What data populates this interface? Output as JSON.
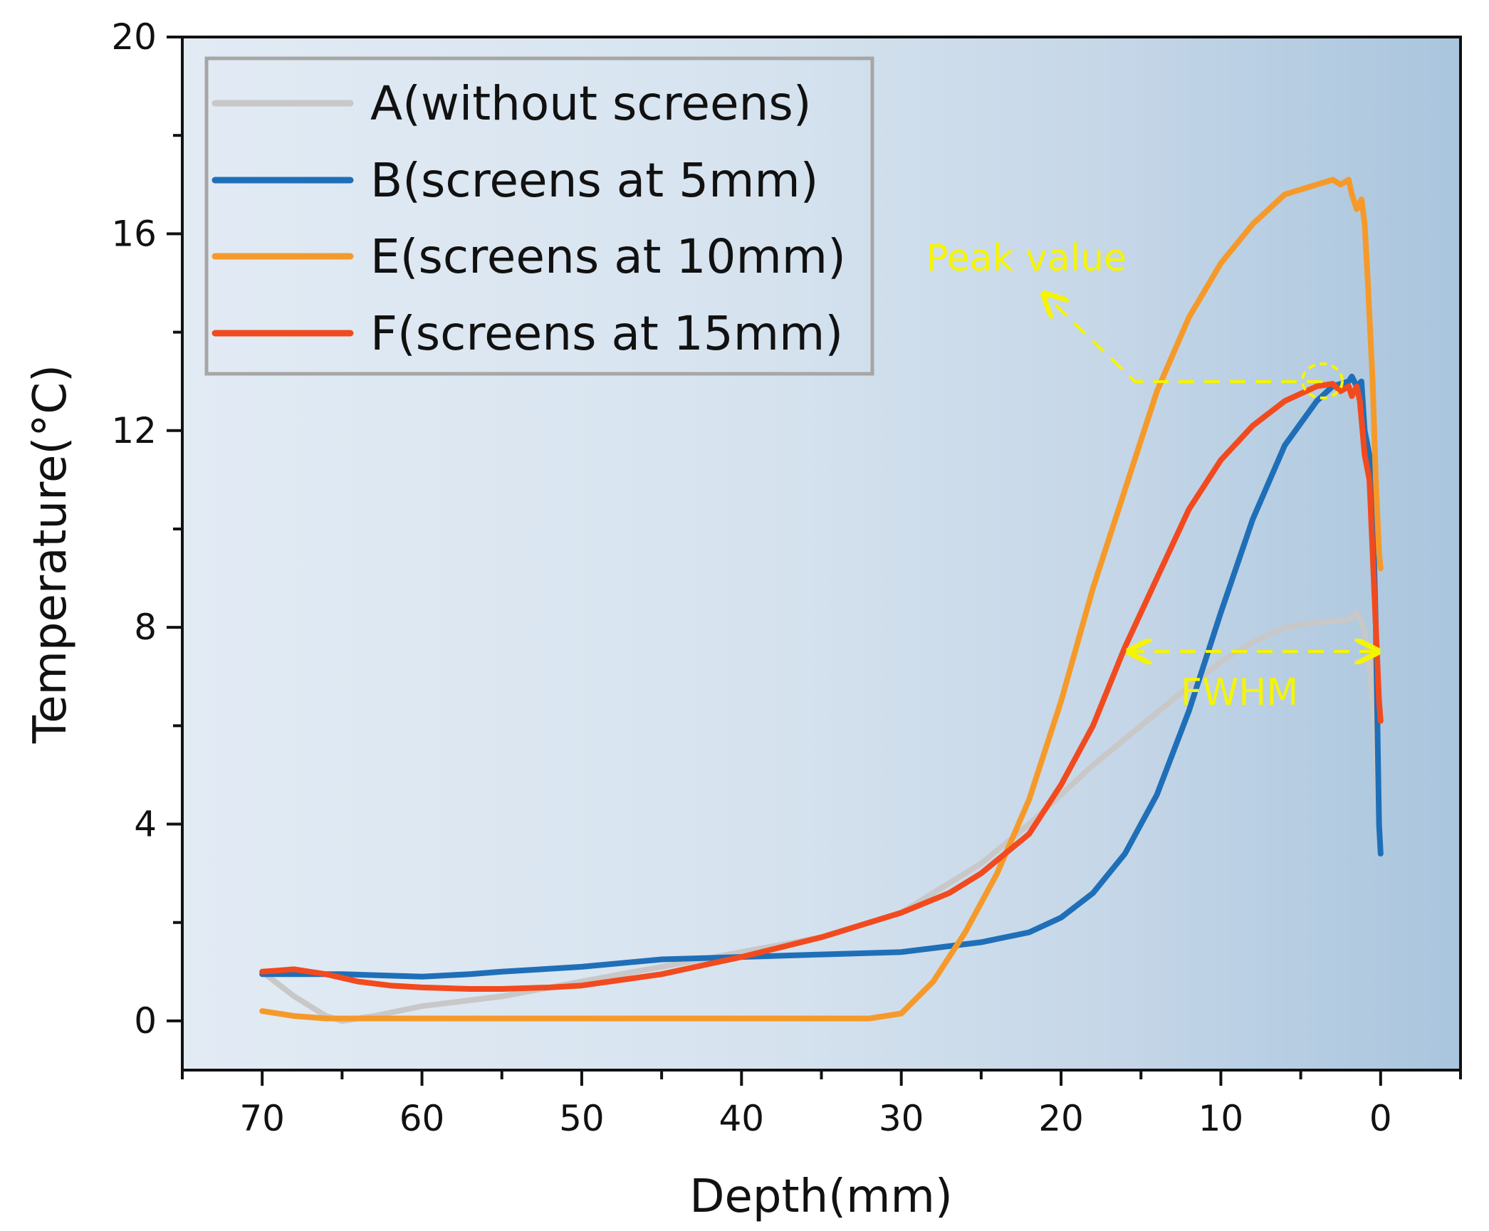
{
  "chart_data": {
    "type": "line",
    "title": "",
    "xlabel": "Depth(mm)",
    "ylabel": "Temperature(°C)",
    "xlim": [
      75,
      -5
    ],
    "ylim": [
      -1,
      20
    ],
    "x_ticks": [
      70,
      60,
      50,
      40,
      30,
      20,
      10,
      0
    ],
    "y_ticks": [
      0,
      4,
      8,
      12,
      16,
      20
    ],
    "grid": false,
    "legend_position": "top-left",
    "series": [
      {
        "name": "A(without screens)",
        "color": "#c8c8c8",
        "points": [
          [
            70,
            1.0
          ],
          [
            68,
            0.5
          ],
          [
            66,
            0.1
          ],
          [
            65,
            0.0
          ],
          [
            63,
            0.1
          ],
          [
            60,
            0.3
          ],
          [
            55,
            0.5
          ],
          [
            50,
            0.8
          ],
          [
            45,
            1.1
          ],
          [
            40,
            1.4
          ],
          [
            35,
            1.7
          ],
          [
            30,
            2.2
          ],
          [
            28,
            2.6
          ],
          [
            25,
            3.2
          ],
          [
            22,
            4.0
          ],
          [
            20,
            4.6
          ],
          [
            18,
            5.2
          ],
          [
            15,
            6.0
          ],
          [
            12,
            6.8
          ],
          [
            10,
            7.3
          ],
          [
            8,
            7.7
          ],
          [
            6,
            8.0
          ],
          [
            4,
            8.1
          ],
          [
            2,
            8.15
          ],
          [
            1.5,
            8.3
          ],
          [
            1.2,
            8.1
          ],
          [
            1.0,
            7.9
          ],
          [
            0.8,
            7.5
          ],
          [
            0.5,
            6.5
          ],
          [
            0.3,
            5.5
          ],
          [
            0.1,
            4.0
          ]
        ]
      },
      {
        "name": "B(screens at 5mm)",
        "color": "#1f6fb8",
        "points": [
          [
            70,
            0.95
          ],
          [
            65,
            0.95
          ],
          [
            60,
            0.9
          ],
          [
            57,
            0.95
          ],
          [
            55,
            1.0
          ],
          [
            50,
            1.1
          ],
          [
            45,
            1.25
          ],
          [
            40,
            1.3
          ],
          [
            35,
            1.35
          ],
          [
            30,
            1.4
          ],
          [
            25,
            1.6
          ],
          [
            22,
            1.8
          ],
          [
            20,
            2.1
          ],
          [
            18,
            2.6
          ],
          [
            16,
            3.4
          ],
          [
            14,
            4.6
          ],
          [
            12,
            6.3
          ],
          [
            10,
            8.3
          ],
          [
            8,
            10.2
          ],
          [
            6,
            11.7
          ],
          [
            4,
            12.6
          ],
          [
            3,
            12.9
          ],
          [
            2,
            13.0
          ],
          [
            1.8,
            13.1
          ],
          [
            1.5,
            12.9
          ],
          [
            1.2,
            13.0
          ],
          [
            1.0,
            12.0
          ],
          [
            0.7,
            11.5
          ],
          [
            0.5,
            10.5
          ],
          [
            0.3,
            8.0
          ],
          [
            0.1,
            4.0
          ],
          [
            0.0,
            3.4
          ]
        ]
      },
      {
        "name": "E(screens at 10mm)",
        "color": "#f59a2a",
        "points": [
          [
            70,
            0.2
          ],
          [
            68,
            0.1
          ],
          [
            66,
            0.05
          ],
          [
            60,
            0.05
          ],
          [
            50,
            0.05
          ],
          [
            40,
            0.05
          ],
          [
            35,
            0.05
          ],
          [
            32,
            0.05
          ],
          [
            30,
            0.15
          ],
          [
            28,
            0.8
          ],
          [
            26,
            1.8
          ],
          [
            24,
            3.0
          ],
          [
            22,
            4.5
          ],
          [
            20,
            6.5
          ],
          [
            18,
            8.8
          ],
          [
            16,
            10.8
          ],
          [
            14,
            12.8
          ],
          [
            12,
            14.3
          ],
          [
            10,
            15.4
          ],
          [
            8,
            16.2
          ],
          [
            6,
            16.8
          ],
          [
            4,
            17.0
          ],
          [
            3,
            17.1
          ],
          [
            2.5,
            17.0
          ],
          [
            2,
            17.1
          ],
          [
            1.8,
            16.8
          ],
          [
            1.5,
            16.5
          ],
          [
            1.2,
            16.7
          ],
          [
            1.0,
            16.2
          ],
          [
            0.8,
            15.0
          ],
          [
            0.5,
            13.0
          ],
          [
            0.3,
            11.0
          ],
          [
            0.1,
            9.5
          ],
          [
            0.0,
            9.2
          ]
        ]
      },
      {
        "name": "F(screens at 15mm)",
        "color": "#f24a1f",
        "points": [
          [
            70,
            1.0
          ],
          [
            68,
            1.05
          ],
          [
            66,
            0.95
          ],
          [
            64,
            0.8
          ],
          [
            62,
            0.72
          ],
          [
            60,
            0.68
          ],
          [
            57,
            0.65
          ],
          [
            55,
            0.65
          ],
          [
            52,
            0.68
          ],
          [
            50,
            0.72
          ],
          [
            45,
            0.95
          ],
          [
            40,
            1.3
          ],
          [
            35,
            1.7
          ],
          [
            30,
            2.2
          ],
          [
            27,
            2.6
          ],
          [
            25,
            3.0
          ],
          [
            22,
            3.8
          ],
          [
            20,
            4.8
          ],
          [
            18,
            6.0
          ],
          [
            16,
            7.6
          ],
          [
            14,
            9.0
          ],
          [
            12,
            10.4
          ],
          [
            10,
            11.4
          ],
          [
            8,
            12.1
          ],
          [
            6,
            12.6
          ],
          [
            4,
            12.9
          ],
          [
            3,
            12.95
          ],
          [
            2.5,
            12.8
          ],
          [
            2,
            12.9
          ],
          [
            1.8,
            12.7
          ],
          [
            1.5,
            12.9
          ],
          [
            1.3,
            12.6
          ],
          [
            1.0,
            11.5
          ],
          [
            0.7,
            11.0
          ],
          [
            0.5,
            9.5
          ],
          [
            0.3,
            8.0
          ],
          [
            0.1,
            6.5
          ],
          [
            0.0,
            6.1
          ]
        ]
      }
    ],
    "annotations": [
      {
        "text": "Peak value",
        "color": "#f5f500"
      },
      {
        "text": "FWHM",
        "color": "#f5f500"
      }
    ]
  }
}
